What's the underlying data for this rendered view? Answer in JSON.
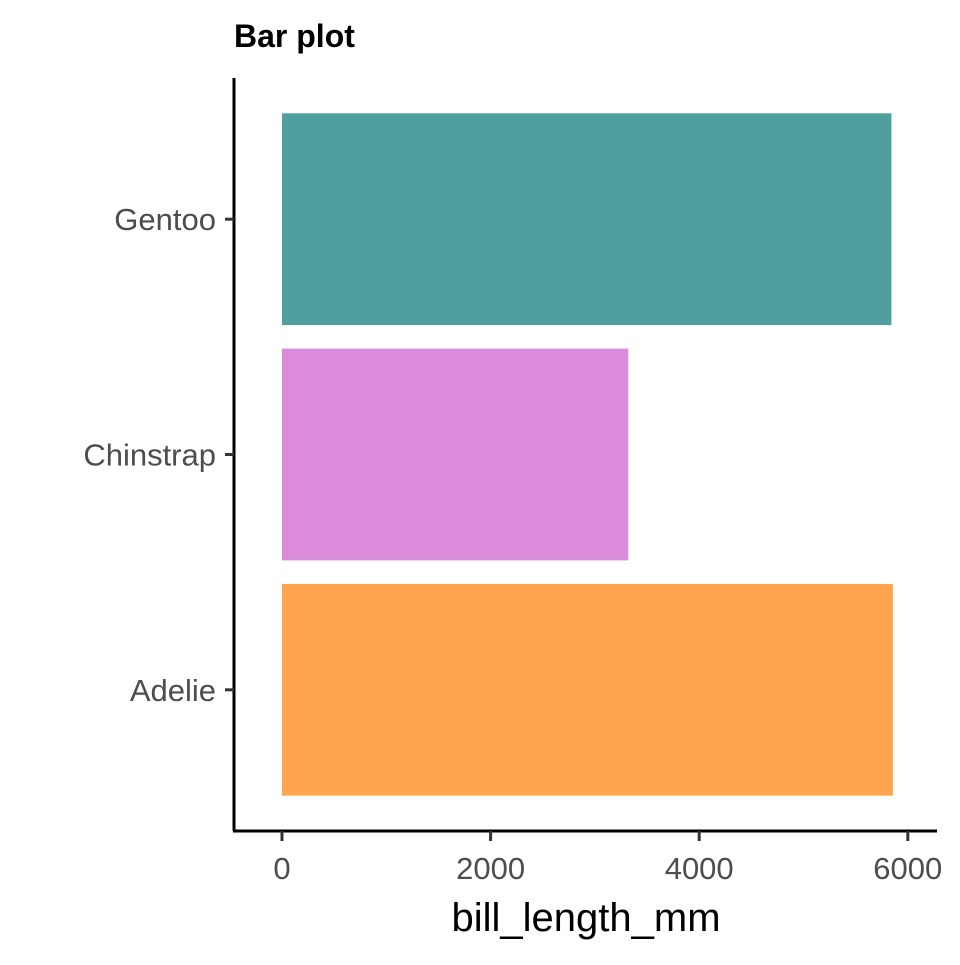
{
  "chart_data": {
    "type": "bar",
    "orientation": "horizontal",
    "title": "Bar plot",
    "xlabel": "bill_length_mm",
    "ylabel": "",
    "categories": [
      "Adelie",
      "Chinstrap",
      "Gentoo"
    ],
    "values": [
      5857.4,
      3320.3,
      5843.1
    ],
    "colors": [
      "#FFA54F",
      "#DA8BDA",
      "#509F9F"
    ],
    "xlim": [
      -460,
      6280
    ],
    "xticks": [
      0,
      2000,
      4000,
      6000
    ],
    "xtick_labels": [
      "0",
      "2000",
      "4000",
      "6000"
    ],
    "grid": false,
    "legend": "none"
  }
}
